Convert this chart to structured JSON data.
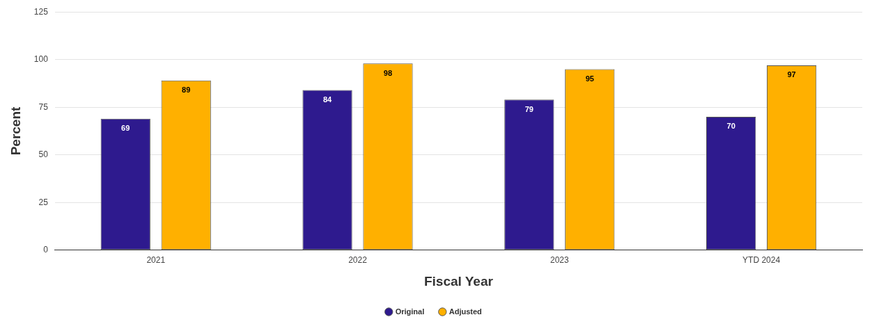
{
  "chart_data": {
    "type": "bar",
    "xlabel": "Fiscal Year",
    "ylabel": "Percent",
    "categories": [
      "2021",
      "2022",
      "2023",
      "YTD 2024"
    ],
    "series": [
      {
        "name": "Original",
        "color": "#2e1a8e",
        "values": [
          69,
          84,
          79,
          70
        ]
      },
      {
        "name": "Adjusted",
        "color": "#ffb000",
        "values": [
          89,
          98,
          95,
          97
        ]
      }
    ],
    "ylim": [
      0,
      125
    ],
    "yticks": [
      0,
      25,
      50,
      75,
      100,
      125
    ],
    "grid": "y",
    "legend": "bottom",
    "data_labels": true
  }
}
